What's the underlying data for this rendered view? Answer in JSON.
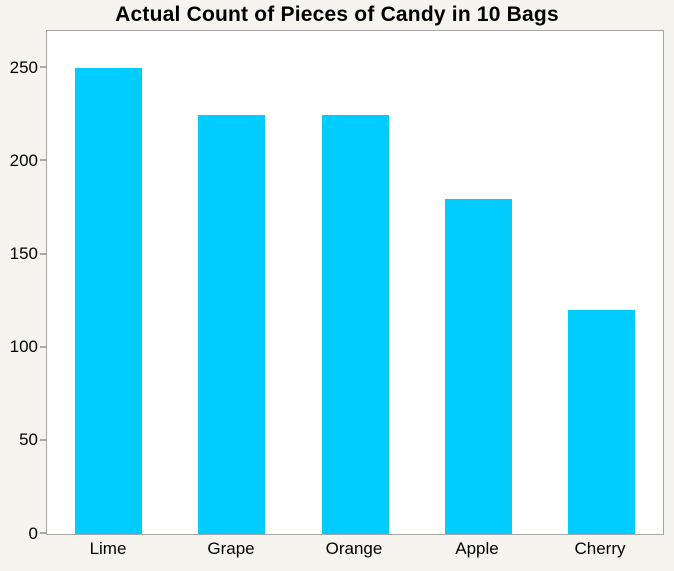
{
  "page": {
    "background_color": "#f5f4ef"
  },
  "chart_data": {
    "type": "bar",
    "title": "Actual Count of Pieces of Candy in 10 Bags",
    "categories": [
      "Lime",
      "Grape",
      "Orange",
      "Apple",
      "Cherry"
    ],
    "values": [
      250,
      225,
      225,
      180,
      120
    ],
    "xlabel": "",
    "ylabel": "",
    "ylim": [
      0,
      270
    ],
    "yticks": [
      0,
      50,
      100,
      150,
      200,
      250
    ],
    "grid": false,
    "legend": false,
    "bar_color": "#00cdfd",
    "plot_background": "#ffffff",
    "plot_border_color": "#a6a6a6",
    "text_color": "#000000"
  }
}
